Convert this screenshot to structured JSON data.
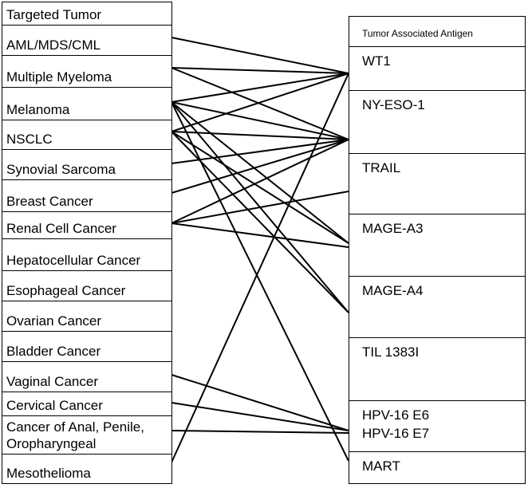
{
  "left_column": {
    "header": "Targeted Tumor",
    "items": [
      "AML/MDS/CML",
      "Multiple Myeloma",
      "Melanoma",
      "NSCLC",
      "Synovial Sarcoma",
      "Breast Cancer",
      "Renal Cell Cancer",
      "Hepatocellular Cancer",
      "Esophageal Cancer",
      "Ovarian  Cancer",
      "Bladder Cancer",
      "Vaginal Cancer",
      "Cervical  Cancer",
      [
        "Cancer of Anal, Penile,",
        "Oropharyngeal"
      ],
      "Mesothelioma"
    ]
  },
  "right_column": {
    "header": "Tumor Associated Antigen",
    "items": [
      "WT1",
      "NY-ESO-1",
      "TRAIL",
      "MAGE-A3",
      "MAGE-A4",
      "TIL 1383I",
      [
        "HPV-16 E6",
        "HPV-16 E7"
      ],
      "MART"
    ]
  }
}
